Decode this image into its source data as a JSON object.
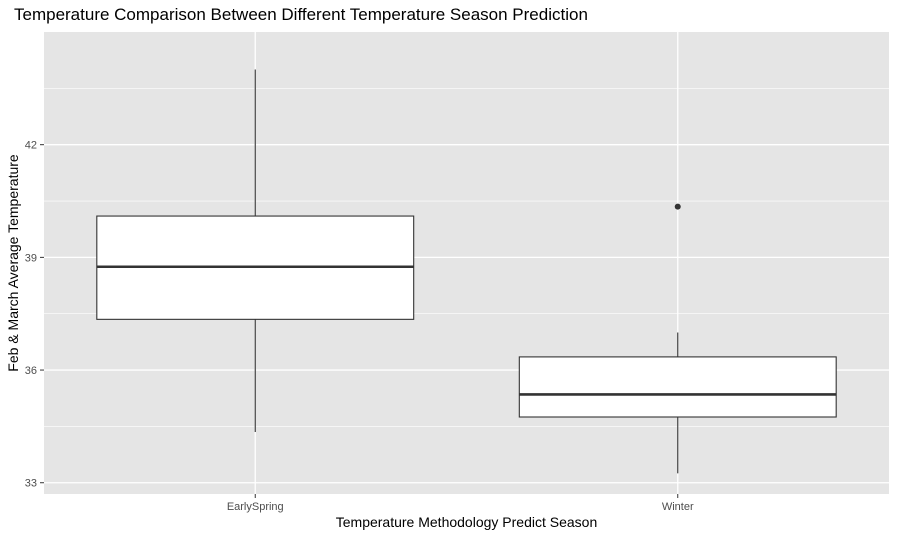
{
  "chart_data": {
    "type": "boxplot",
    "title": "Temperature Comparison Between Different Temperature Season Prediction",
    "xlabel": "Temperature Methodology Predict Season",
    "ylabel": "Feb & March Average Temperature",
    "categories": [
      "EarlySpring",
      "Winter"
    ],
    "boxes": [
      {
        "category": "EarlySpring",
        "min": 34.35,
        "q1": 37.35,
        "median": 38.75,
        "q3": 40.1,
        "max": 44.0,
        "outliers": []
      },
      {
        "category": "Winter",
        "min": 33.25,
        "q1": 34.75,
        "median": 35.35,
        "q3": 36.35,
        "max": 37.0,
        "outliers": [
          40.35
        ]
      }
    ],
    "y_ticks": [
      33,
      36,
      39,
      42
    ],
    "ylim": [
      32.7,
      45.0
    ],
    "grid": true,
    "legend": "none",
    "colors": {
      "panel_background": "#e5e5e5",
      "grid_major": "#ffffff",
      "box_fill": "#ffffff",
      "box_stroke": "#333333",
      "tick_label": "#4d4d4d"
    }
  }
}
